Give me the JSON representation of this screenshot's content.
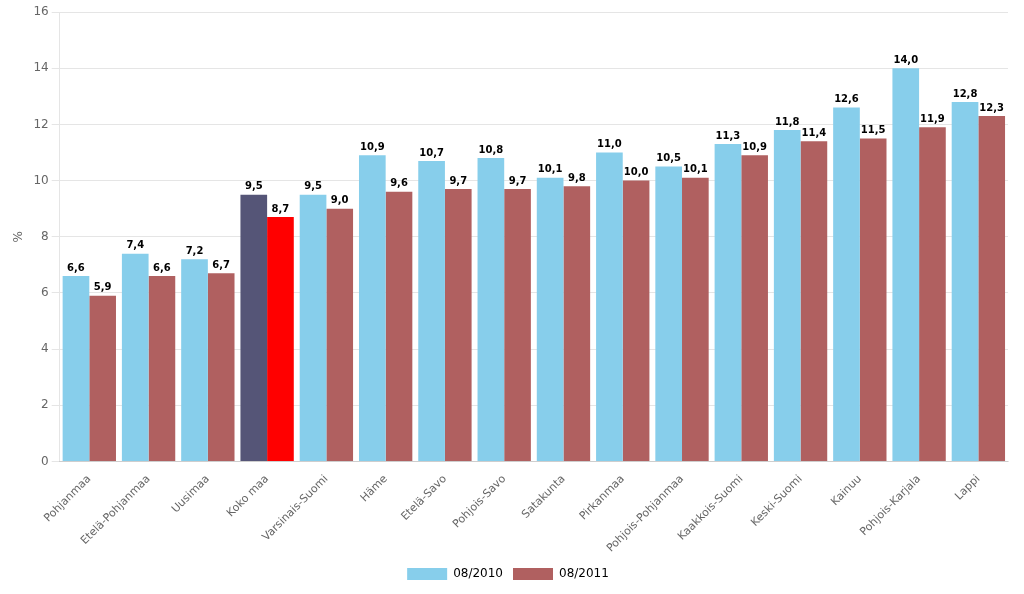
{
  "chart_data": {
    "type": "bar",
    "ylabel": "%",
    "categories": [
      "Pohjanmaa",
      "Etelä-Pohjanmaa",
      "Uusimaa",
      "Koko maa",
      "Varsinais-Suomi",
      "Häme",
      "Etelä-Savo",
      "Pohjois-Savo",
      "Satakunta",
      "Pirkanmaa",
      "Pohjois-Pohjanmaa",
      "Kaakkois-Suomi",
      "Keski-Suomi",
      "Kainuu",
      "Pohjois-Karjala",
      "Lappi"
    ],
    "series": [
      {
        "name": "08/2010",
        "color": "#87CEEB",
        "colors": [
          "#87CEEB",
          "#87CEEB",
          "#87CEEB",
          "#555577",
          "#87CEEB",
          "#87CEEB",
          "#87CEEB",
          "#87CEEB",
          "#87CEEB",
          "#87CEEB",
          "#87CEEB",
          "#87CEEB",
          "#87CEEB",
          "#87CEEB",
          "#87CEEB",
          "#87CEEB"
        ],
        "values": [
          6.6,
          7.4,
          7.2,
          9.5,
          9.5,
          10.9,
          10.7,
          10.8,
          10.1,
          11.0,
          10.5,
          11.3,
          11.8,
          12.6,
          14.0,
          12.8
        ],
        "value_labels": [
          "6,6",
          "7,4",
          "7,2",
          "9,5",
          "9,5",
          "10,9",
          "10,7",
          "10,8",
          "10,1",
          "11,0",
          "10,5",
          "11,3",
          "11,8",
          "12,6",
          "14,0",
          "12,8"
        ]
      },
      {
        "name": "08/2011",
        "color": "#B06060",
        "colors": [
          "#B06060",
          "#B06060",
          "#B06060",
          "#FF0000",
          "#B06060",
          "#B06060",
          "#B06060",
          "#B06060",
          "#B06060",
          "#B06060",
          "#B06060",
          "#B06060",
          "#B06060",
          "#B06060",
          "#B06060",
          "#B06060"
        ],
        "values": [
          5.9,
          6.6,
          6.7,
          8.7,
          9.0,
          9.6,
          9.7,
          9.7,
          9.8,
          10.0,
          10.1,
          10.9,
          11.4,
          11.5,
          11.9,
          12.3
        ],
        "value_labels": [
          "5,9",
          "6,6",
          "6,7",
          "8,7",
          "9,0",
          "9,6",
          "9,7",
          "9,7",
          "9,8",
          "10,0",
          "10,1",
          "10,9",
          "11,4",
          "11,5",
          "11,9",
          "12,3"
        ]
      }
    ],
    "ylim": [
      0,
      16
    ],
    "yticks": [
      0,
      2,
      4,
      6,
      8,
      10,
      12,
      14,
      16
    ],
    "grid": true,
    "legend": "bottom",
    "data_labels": true
  }
}
